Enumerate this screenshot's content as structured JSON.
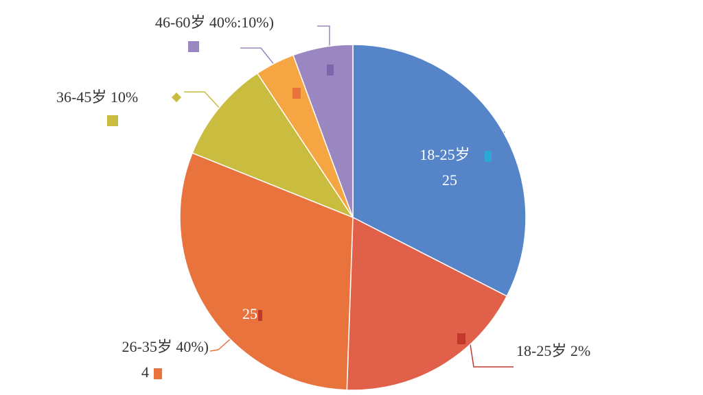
{
  "chart_data": {
    "type": "pie",
    "values": [
      32.5,
      18,
      30.5,
      9.6,
      3.7,
      5.6
    ],
    "colors": [
      "#5585c8",
      "#e0604a",
      "#e8733c",
      "#c9bc3e",
      "#f5a542",
      "#9a86c0"
    ],
    "annotations": [
      "18-25岁",
      "25",
      "18-25岁 2%",
      "26-35岁 40%)",
      "4",
      "25",
      "36-45岁 10%",
      "46-60岁 40%:10%)"
    ]
  }
}
